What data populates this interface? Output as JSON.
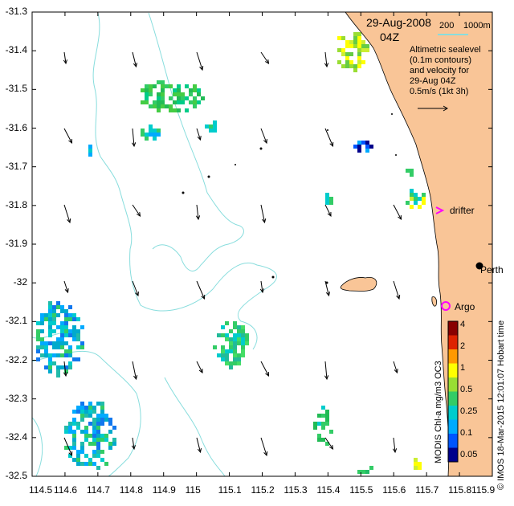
{
  "header": {
    "date": "29-Aug-2008",
    "time": "04Z",
    "isobath_labels": [
      "200",
      "1000m"
    ]
  },
  "legend_note": {
    "lines": [
      "Altimetric sealevel",
      "(0.1m contours)",
      "and velocity for",
      "29-Aug 04Z",
      "0.5m/s (1kt 3h)"
    ]
  },
  "markers": {
    "drifter": "drifter",
    "argo": "Argo",
    "perth": "Perth"
  },
  "colorbar": {
    "title": "MODIS Chl-a mg/m3 OC3",
    "ticks": [
      "4",
      "2",
      "1",
      "0.5",
      "0.25",
      "0.1",
      "0.05"
    ]
  },
  "credit": "© IMOS 18-Mar-2015 12:01:07 Hobart time",
  "axes": {
    "x_ticks": [
      "114.5",
      "114.6",
      "114.7",
      "114.8",
      "114.9",
      "115",
      "115.1",
      "115.2",
      "115.3",
      "115.4",
      "115.5",
      "115.6",
      "115.7",
      "115.8",
      "115.9"
    ],
    "y_ticks": [
      "-31.3",
      "-31.4",
      "-31.5",
      "-31.6",
      "-31.7",
      "-31.8",
      "-31.9",
      "-32",
      "-32.1",
      "-32.2",
      "-32.3",
      "-32.4",
      "-32.5"
    ]
  },
  "colors": {
    "land": "#f9c597",
    "contour": "#88dddd",
    "drifter_marker": "#ff00ff",
    "argo_marker": "#ff00ff",
    "chl_scale": [
      "#00008b",
      "#0055ff",
      "#00aaff",
      "#00cccc",
      "#33cc66",
      "#99dd33",
      "#ffff00",
      "#ff9900",
      "#dd2200",
      "#880000"
    ]
  }
}
